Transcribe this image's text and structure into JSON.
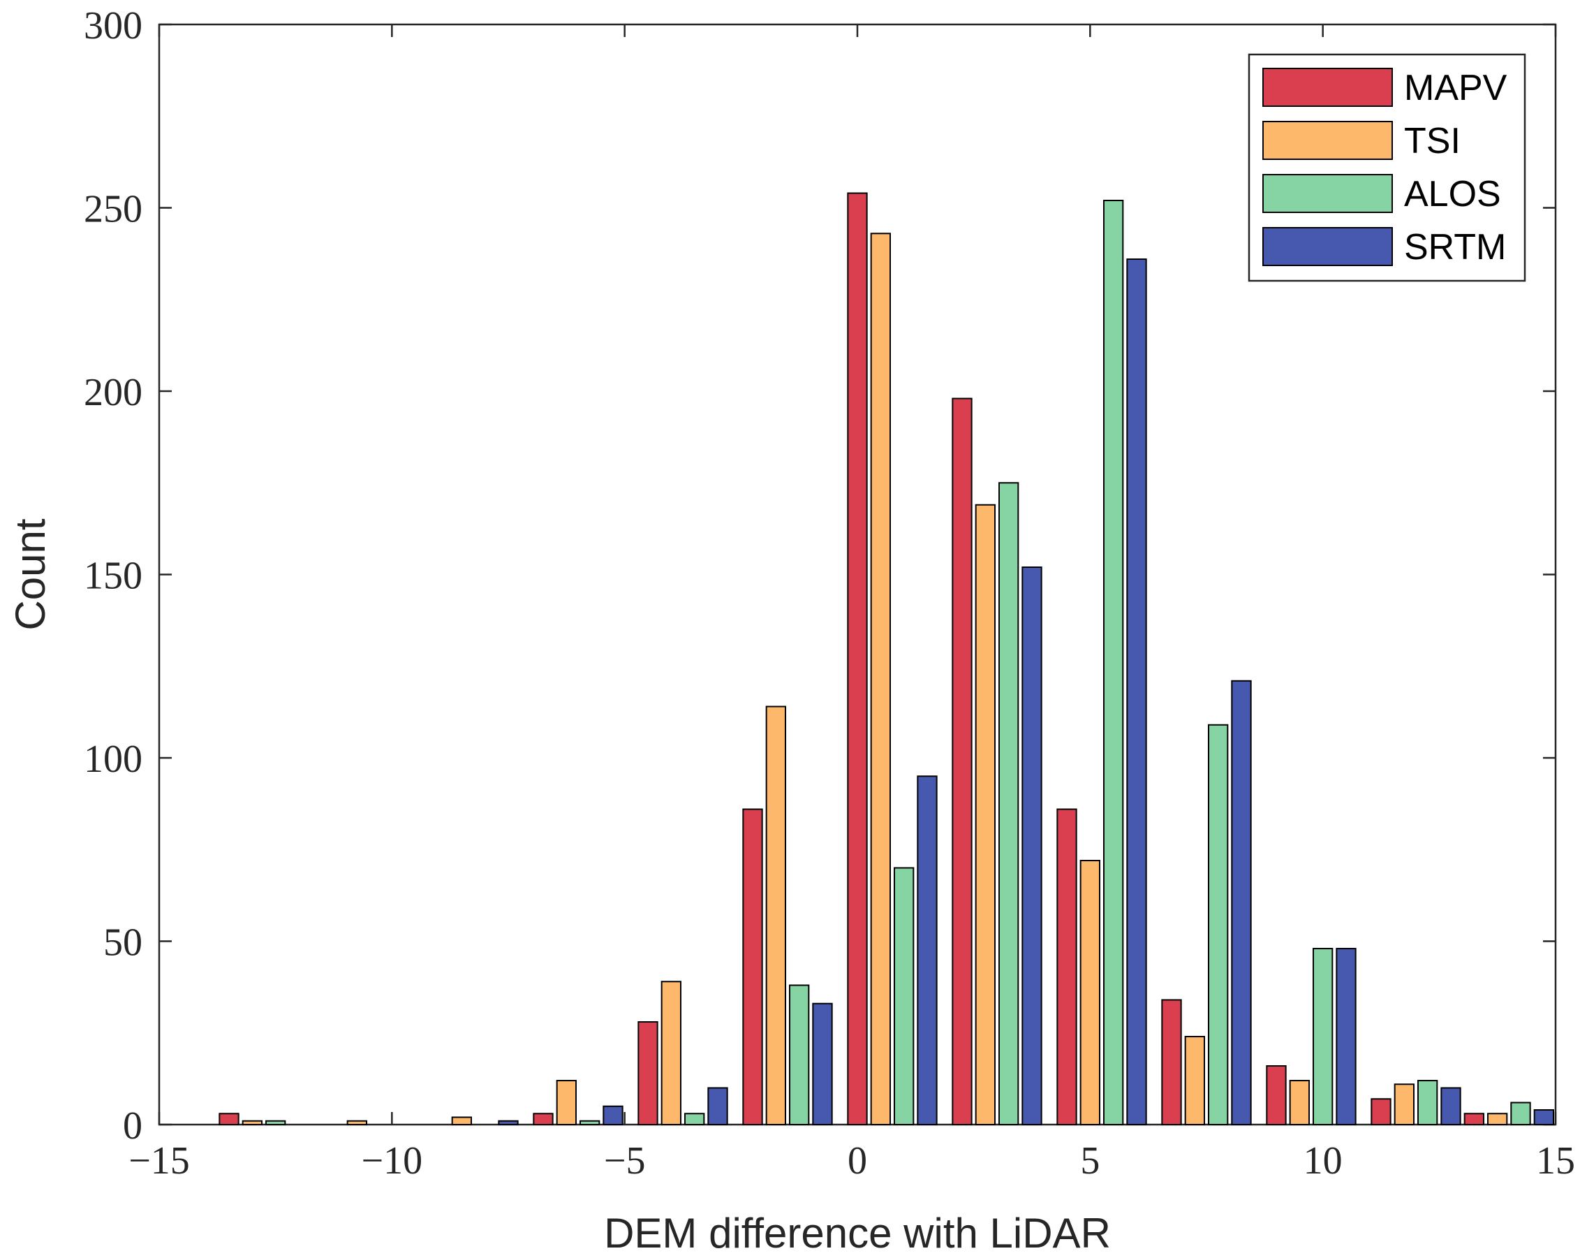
{
  "chart_data": {
    "type": "bar",
    "title": "",
    "xlabel": "DEM difference with LiDAR",
    "ylabel": "Count",
    "xlim": [
      -15,
      15
    ],
    "ylim": [
      0,
      300
    ],
    "xticks": [
      -15,
      -10,
      -5,
      0,
      5,
      10,
      15
    ],
    "xtick_labels": [
      "−15",
      "−10",
      "−5",
      "0",
      "5",
      "10",
      "15"
    ],
    "yticks": [
      0,
      50,
      100,
      150,
      200,
      250,
      300
    ],
    "ytick_labels": [
      "0",
      "50",
      "100",
      "150",
      "200",
      "250",
      "300"
    ],
    "grid": false,
    "legend_position": "top-right",
    "bin_centers": [
      -12.75,
      -10.5,
      -8.25,
      -6.0,
      -3.75,
      -1.5,
      0.75,
      3.0,
      5.25,
      7.5,
      9.75,
      12.0,
      14.0
    ],
    "series": [
      {
        "name": "MAPV",
        "color": "#D93F4E",
        "values": [
          3,
          0,
          0,
          3,
          28,
          86,
          254,
          198,
          86,
          34,
          16,
          7,
          3
        ]
      },
      {
        "name": "TSI",
        "color": "#FDB86B",
        "values": [
          1,
          1,
          2,
          12,
          39,
          114,
          243,
          169,
          72,
          24,
          12,
          11,
          3
        ]
      },
      {
        "name": "ALOS",
        "color": "#86D3A4",
        "values": [
          1,
          0,
          0,
          1,
          3,
          38,
          70,
          175,
          252,
          109,
          48,
          12,
          6
        ]
      },
      {
        "name": "SRTM",
        "color": "#4659AE",
        "values": [
          0,
          0,
          1,
          5,
          10,
          33,
          95,
          152,
          236,
          121,
          48,
          10,
          4
        ]
      }
    ]
  }
}
